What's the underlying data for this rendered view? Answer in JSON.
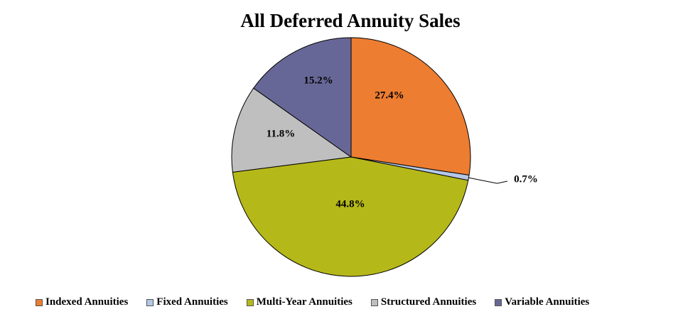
{
  "chart_data": {
    "type": "pie",
    "title": "All Deferred Annuity Sales",
    "legend_position": "bottom",
    "slices": [
      {
        "name": "Indexed Annuities",
        "label": "27.4%",
        "value": 27.4,
        "color": "#ED7D31"
      },
      {
        "name": "Fixed Annuities",
        "label": "0.7%",
        "value": 0.7,
        "color": "#B4C7E7"
      },
      {
        "name": "Multi-Year Annuities",
        "label": "44.8%",
        "value": 44.8,
        "color": "#B5B819"
      },
      {
        "name": "Structured Annuities",
        "label": "11.8%",
        "value": 11.8,
        "color": "#BFBFBF"
      },
      {
        "name": "Variable Annuities",
        "label": "15.2%",
        "value": 15.2,
        "color": "#676797"
      }
    ]
  }
}
